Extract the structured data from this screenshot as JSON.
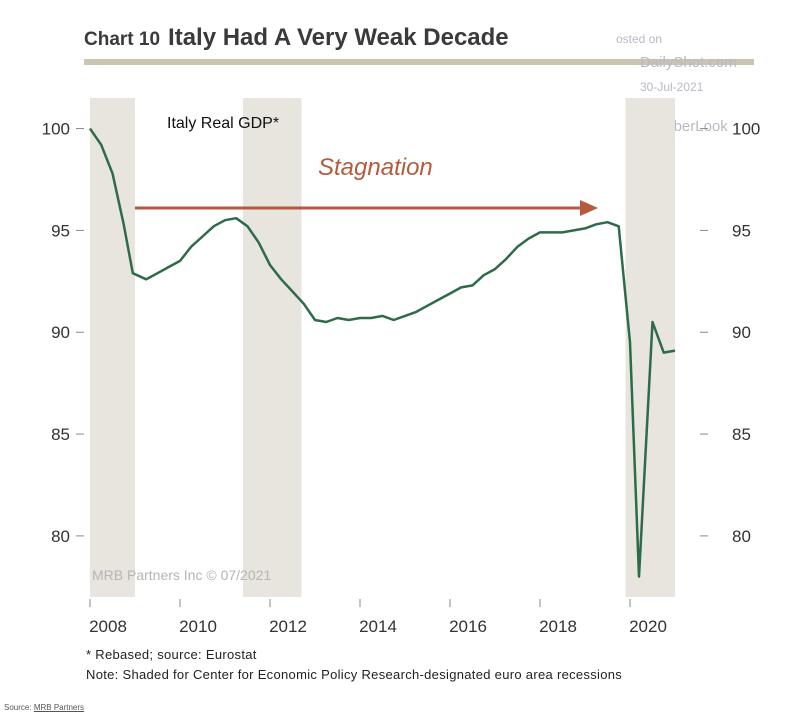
{
  "header": {
    "chart_label": "Chart 10",
    "title": "Italy Had A Very Weak Decade"
  },
  "watermarks": {
    "posted": "osted on",
    "site": "DailyShot.com",
    "date": "30-Jul-2021",
    "handle": "@SoberLook",
    "credit": "MRB Partners Inc © 07/2021"
  },
  "footnotes": {
    "rebased": "* Rebased; source: Eurostat",
    "note": "Note: Shaded for Center for Economic Policy Research-designated euro area recessions"
  },
  "source": {
    "prefix": "Source:",
    "link": "MRB Partners"
  },
  "chart_data": {
    "type": "line",
    "series_label": "Italy Real GDP*",
    "annotation": "Stagnation",
    "xlim": [
      2008,
      2021.2
    ],
    "ylim": [
      77,
      101.5
    ],
    "x_ticks": [
      2008,
      2010,
      2012,
      2014,
      2016,
      2018,
      2020
    ],
    "y_ticks": [
      80,
      85,
      90,
      95,
      100
    ],
    "grid": false,
    "recessions": [
      {
        "start": 2008.0,
        "end": 2009.0
      },
      {
        "start": 2011.4,
        "end": 2012.7
      },
      {
        "start": 2019.9,
        "end": 2021.0
      }
    ],
    "annotation_arrow": {
      "x_start": 2009.0,
      "x_end": 2019.2,
      "y": 96.1
    },
    "series": [
      {
        "color": "#2e6b4a",
        "points": [
          [
            2008.0,
            100.0
          ],
          [
            2008.25,
            99.2
          ],
          [
            2008.5,
            97.8
          ],
          [
            2008.75,
            95.3
          ],
          [
            2008.95,
            92.9
          ],
          [
            2009.25,
            92.6
          ],
          [
            2009.5,
            92.9
          ],
          [
            2009.75,
            93.2
          ],
          [
            2010.0,
            93.5
          ],
          [
            2010.25,
            94.2
          ],
          [
            2010.5,
            94.7
          ],
          [
            2010.75,
            95.2
          ],
          [
            2011.0,
            95.5
          ],
          [
            2011.25,
            95.6
          ],
          [
            2011.5,
            95.2
          ],
          [
            2011.75,
            94.4
          ],
          [
            2012.0,
            93.3
          ],
          [
            2012.25,
            92.6
          ],
          [
            2012.5,
            92.0
          ],
          [
            2012.75,
            91.4
          ],
          [
            2013.0,
            90.6
          ],
          [
            2013.25,
            90.5
          ],
          [
            2013.5,
            90.7
          ],
          [
            2013.75,
            90.6
          ],
          [
            2014.0,
            90.7
          ],
          [
            2014.25,
            90.7
          ],
          [
            2014.5,
            90.8
          ],
          [
            2014.75,
            90.6
          ],
          [
            2015.0,
            90.8
          ],
          [
            2015.25,
            91.0
          ],
          [
            2015.5,
            91.3
          ],
          [
            2015.75,
            91.6
          ],
          [
            2016.0,
            91.9
          ],
          [
            2016.25,
            92.2
          ],
          [
            2016.5,
            92.3
          ],
          [
            2016.75,
            92.8
          ],
          [
            2017.0,
            93.1
          ],
          [
            2017.25,
            93.6
          ],
          [
            2017.5,
            94.2
          ],
          [
            2017.75,
            94.6
          ],
          [
            2018.0,
            94.9
          ],
          [
            2018.25,
            94.9
          ],
          [
            2018.5,
            94.9
          ],
          [
            2018.75,
            95.0
          ],
          [
            2019.0,
            95.1
          ],
          [
            2019.25,
            95.3
          ],
          [
            2019.5,
            95.4
          ],
          [
            2019.75,
            95.2
          ],
          [
            2020.0,
            89.5
          ],
          [
            2020.2,
            78.0
          ],
          [
            2020.5,
            90.5
          ],
          [
            2020.75,
            89.0
          ],
          [
            2021.0,
            89.1
          ]
        ]
      }
    ]
  }
}
